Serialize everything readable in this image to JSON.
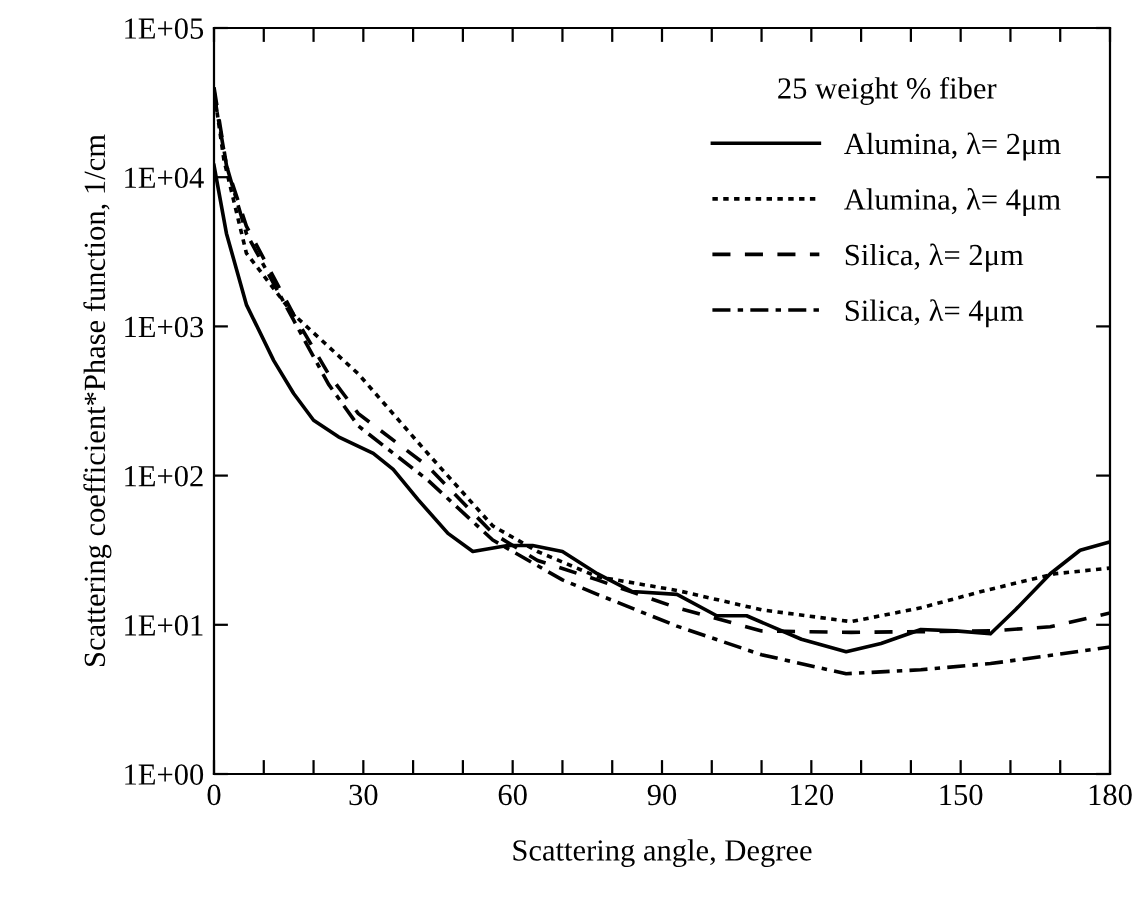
{
  "chart_data": {
    "type": "line",
    "xlabel": "Scattering angle, Degree",
    "ylabel": "Scattering coefficient*Phase function, 1/cm",
    "legend_title": "25 weight % fiber",
    "legend": "top right",
    "log": "y",
    "grid": false,
    "xlim": [
      0,
      180
    ],
    "ylim": [
      1,
      100000
    ],
    "xticks": [
      0,
      {
        "value": 10,
        "label": null
      },
      {
        "value": 20,
        "label": null
      },
      30,
      {
        "value": 40,
        "label": null
      },
      {
        "value": 50,
        "label": null
      },
      60,
      {
        "value": 70,
        "label": null
      },
      {
        "value": 80,
        "label": null
      },
      90,
      {
        "value": 100,
        "label": null
      },
      {
        "value": 110,
        "label": null
      },
      120,
      {
        "value": 130,
        "label": null
      },
      {
        "value": 140,
        "label": null
      },
      150,
      {
        "value": 160,
        "label": null
      },
      {
        "value": 170,
        "label": null
      },
      180
    ],
    "yticks": [
      {
        "value": 1,
        "label": "1E+00"
      },
      {
        "value": 10,
        "label": "1E+01"
      },
      {
        "value": 100,
        "label": "1E+02"
      },
      {
        "value": 1000,
        "label": "1E+03"
      },
      {
        "value": 10000,
        "label": "1E+04"
      },
      {
        "value": 100000,
        "label": "1E+05"
      }
    ],
    "series": [
      {
        "name": "Alumina, λ= 2μm",
        "color": "#000000",
        "line_style": "solid",
        "x": [
          0,
          2.5,
          6.5,
          12,
          16,
          20,
          25,
          32,
          36,
          41,
          47,
          52,
          59,
          64,
          70,
          77,
          84,
          93,
          101,
          107,
          118,
          127,
          134,
          142,
          149,
          156,
          161,
          168,
          174,
          180
        ],
        "values": [
          12000,
          4200,
          1400,
          590,
          355,
          235,
          182,
          141,
          110,
          69,
          41,
          31,
          34,
          34,
          31,
          22,
          16.7,
          16,
          11.5,
          11.5,
          8,
          6.6,
          7.5,
          9.3,
          9.1,
          8.7,
          12.6,
          22,
          31.6,
          36
        ]
      },
      {
        "name": "Alumina, λ= 4μm",
        "color": "#000000",
        "line_style": "dotted",
        "x": [
          0,
          2,
          6.5,
          16,
          29,
          43,
          56,
          65,
          77,
          93,
          110,
          128,
          142,
          155,
          169,
          180
        ],
        "values": [
          38000,
          13000,
          3100,
          1200,
          480,
          140,
          46,
          31,
          21,
          17,
          12.6,
          10.5,
          13,
          17,
          22,
          24
        ]
      },
      {
        "name": "Silica, λ= 2μm",
        "color": "#000000",
        "line_style": "dashed",
        "x": [
          0,
          2.5,
          6.5,
          16,
          23,
          29,
          43,
          56,
          65,
          77,
          93,
          110,
          128,
          156,
          168,
          180
        ],
        "values": [
          40000,
          12000,
          4700,
          1200,
          480,
          260,
          115,
          41,
          27,
          20,
          13,
          9.1,
          8.9,
          9.1,
          9.7,
          12
        ]
      },
      {
        "name": "Silica, λ= 4μm",
        "color": "#000000",
        "line_style": "dashdot",
        "x": [
          0,
          2.5,
          6.5,
          16,
          23,
          29,
          43,
          56,
          70,
          77,
          93,
          110,
          127,
          142,
          156,
          169,
          180
        ],
        "values": [
          36000,
          12000,
          4200,
          1100,
          410,
          215,
          93,
          37,
          20,
          16,
          9.8,
          6.3,
          4.7,
          5,
          5.5,
          6.3,
          7.1
        ]
      }
    ]
  }
}
